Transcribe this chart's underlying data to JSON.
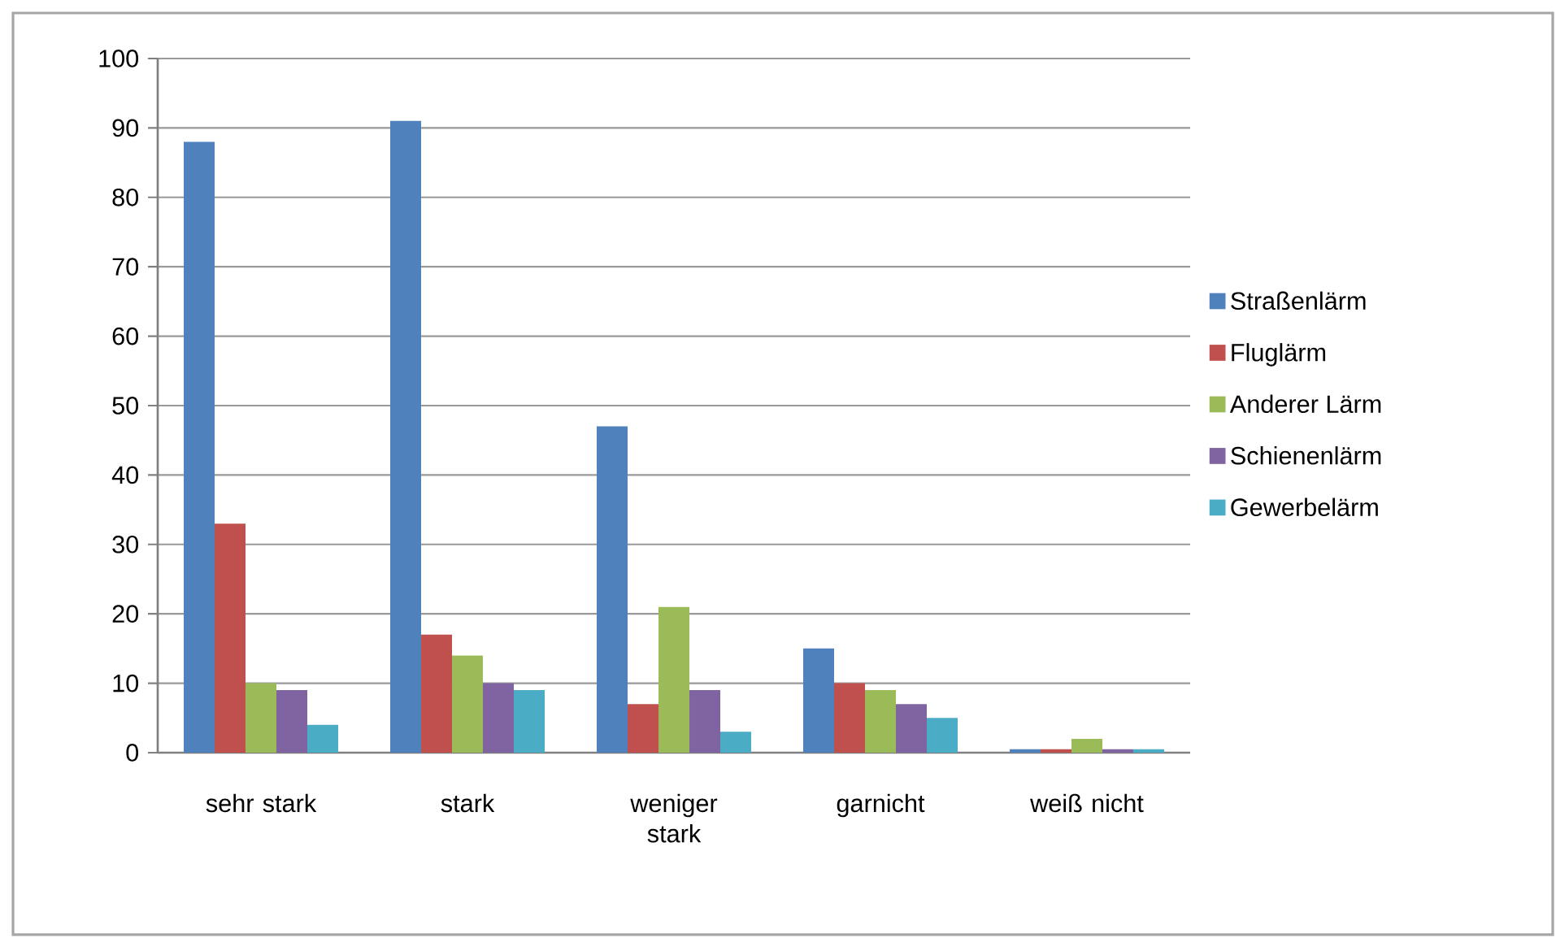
{
  "chart_data": {
    "type": "bar",
    "categories": [
      "sehr stark",
      "stark",
      "weniger stark",
      "garnicht",
      "weiß nicht"
    ],
    "series": [
      {
        "name": "Straßenlärm",
        "color": "#4f81bd",
        "values": [
          88,
          91,
          47,
          15,
          0.5
        ]
      },
      {
        "name": "Fluglärm",
        "color": "#c0504d",
        "values": [
          33,
          17,
          7,
          10,
          0.5
        ]
      },
      {
        "name": "Anderer Lärm",
        "color": "#9bbb59",
        "values": [
          10,
          14,
          21,
          9,
          2
        ]
      },
      {
        "name": "Schienenlärm",
        "color": "#8064a2",
        "values": [
          9,
          10,
          9,
          7,
          0.5
        ]
      },
      {
        "name": "Gewerbelärm",
        "color": "#4bacc6",
        "values": [
          4,
          9,
          3,
          5,
          0.5
        ]
      }
    ],
    "ylim": [
      0,
      100
    ],
    "yticks": [
      0,
      10,
      20,
      30,
      40,
      50,
      60,
      70,
      80,
      90,
      100
    ],
    "grid": "y",
    "legend": "right"
  }
}
